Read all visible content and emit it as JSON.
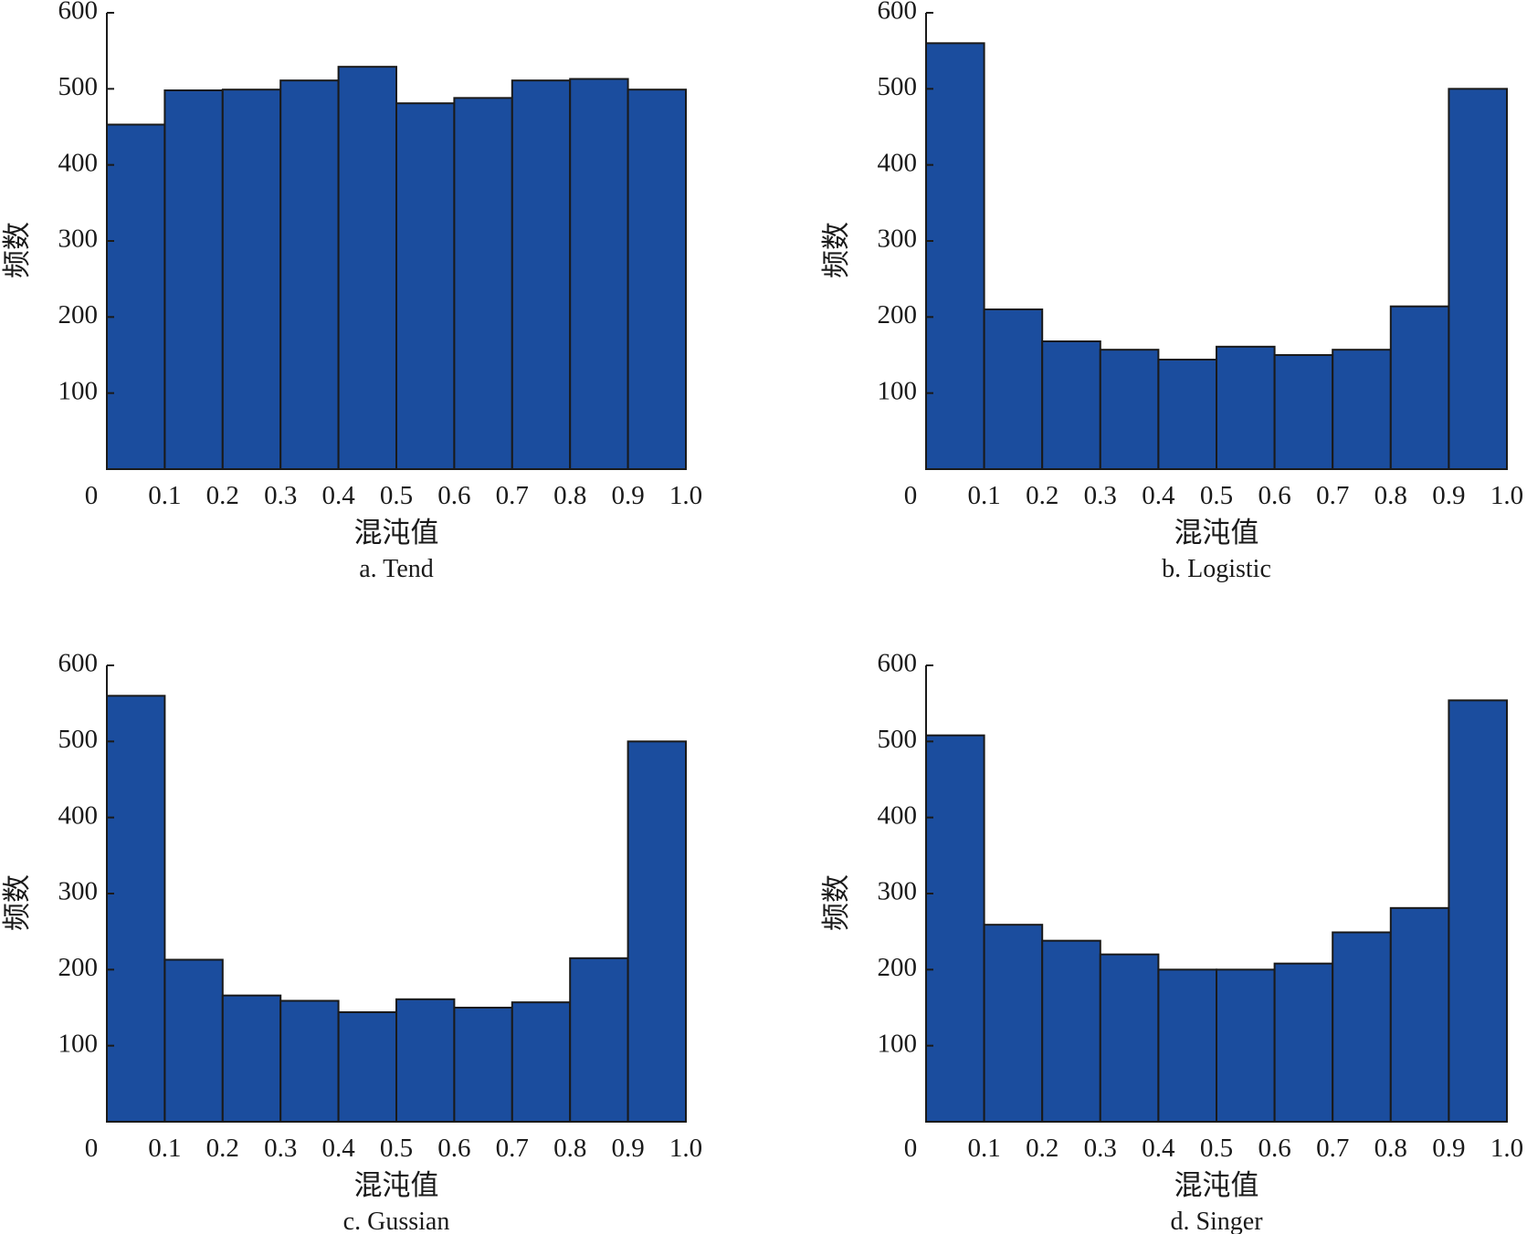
{
  "chart_data": [
    {
      "type": "bar",
      "caption": "a. Tend",
      "xlabel": "混沌值",
      "ylabel": "频数",
      "x_ticks": [
        "0",
        "0.1",
        "0.2",
        "0.3",
        "0.4",
        "0.5",
        "0.6",
        "0.7",
        "0.8",
        "0.9",
        "1.0"
      ],
      "y_ticks": [
        "100",
        "200",
        "300",
        "400",
        "500",
        "600"
      ],
      "bin_edges": [
        0,
        0.1,
        0.2,
        0.3,
        0.4,
        0.5,
        0.6,
        0.7,
        0.8,
        0.9,
        1.0
      ],
      "values": [
        453,
        498,
        499,
        511,
        529,
        481,
        488,
        511,
        513,
        499
      ],
      "xlim": [
        0,
        1.0
      ],
      "ylim": [
        0,
        600
      ]
    },
    {
      "type": "bar",
      "caption": "b. Logistic",
      "xlabel": "混沌值",
      "ylabel": "频数",
      "x_ticks": [
        "0",
        "0.1",
        "0.2",
        "0.3",
        "0.4",
        "0.5",
        "0.6",
        "0.7",
        "0.8",
        "0.9",
        "1.0"
      ],
      "y_ticks": [
        "100",
        "200",
        "300",
        "400",
        "500",
        "600"
      ],
      "bin_edges": [
        0,
        0.1,
        0.2,
        0.3,
        0.4,
        0.5,
        0.6,
        0.7,
        0.8,
        0.9,
        1.0
      ],
      "values": [
        560,
        210,
        168,
        157,
        144,
        161,
        150,
        157,
        214,
        500
      ],
      "xlim": [
        0,
        1.0
      ],
      "ylim": [
        0,
        600
      ]
    },
    {
      "type": "bar",
      "caption": "c. Gussian",
      "xlabel": "混沌值",
      "ylabel": "频数",
      "x_ticks": [
        "0",
        "0.1",
        "0.2",
        "0.3",
        "0.4",
        "0.5",
        "0.6",
        "0.7",
        "0.8",
        "0.9",
        "1.0"
      ],
      "y_ticks": [
        "100",
        "200",
        "300",
        "400",
        "500",
        "600"
      ],
      "bin_edges": [
        0,
        0.1,
        0.2,
        0.3,
        0.4,
        0.5,
        0.6,
        0.7,
        0.8,
        0.9,
        1.0
      ],
      "values": [
        560,
        213,
        166,
        159,
        144,
        161,
        150,
        157,
        215,
        500
      ],
      "xlim": [
        0,
        1.0
      ],
      "ylim": [
        0,
        600
      ]
    },
    {
      "type": "bar",
      "caption": "d. Singer",
      "xlabel": "混沌值",
      "ylabel": "频数",
      "x_ticks": [
        "0",
        "0.1",
        "0.2",
        "0.3",
        "0.4",
        "0.5",
        "0.6",
        "0.7",
        "0.8",
        "0.9",
        "1.0"
      ],
      "y_ticks": [
        "100",
        "200",
        "300",
        "400",
        "500",
        "600"
      ],
      "bin_edges": [
        0,
        0.1,
        0.2,
        0.3,
        0.4,
        0.5,
        0.6,
        0.7,
        0.8,
        0.9,
        1.0
      ],
      "values": [
        508,
        259,
        238,
        220,
        200,
        200,
        208,
        249,
        281,
        554
      ],
      "xlim": [
        0,
        1.0
      ],
      "ylim": [
        0,
        600
      ]
    }
  ],
  "colors": {
    "bar_fill": "#1b4d9e",
    "bar_stroke": "#1a1a1a",
    "axis": "#1a1a1a"
  }
}
